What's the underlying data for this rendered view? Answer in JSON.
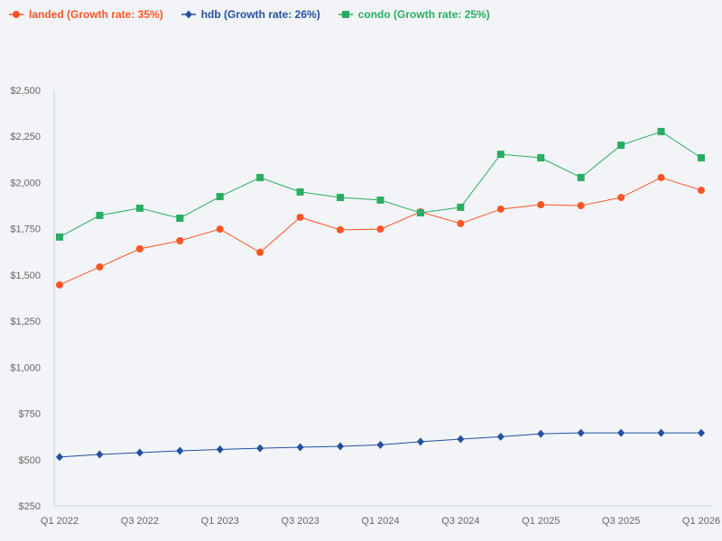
{
  "chart_data": {
    "type": "line",
    "title": "",
    "xlabel": "",
    "ylabel": "",
    "ylim": [
      250,
      2500
    ],
    "yticks": [
      "$250",
      "$500",
      "$750",
      "$1,000",
      "$1,250",
      "$1,500",
      "$1,750",
      "$2,000",
      "$2,250",
      "$2,500"
    ],
    "ytick_values": [
      250,
      500,
      750,
      1000,
      1250,
      1500,
      1750,
      2000,
      2250,
      2500
    ],
    "x": [
      "Q1 2022",
      "Q2 2022",
      "Q3 2022",
      "Q4 2022",
      "Q1 2023",
      "Q2 2023",
      "Q3 2023",
      "Q4 2023",
      "Q1 2024",
      "Q2 2024",
      "Q3 2024",
      "Q4 2024",
      "Q1 2025",
      "Q2 2025",
      "Q3 2025",
      "Q4 2025",
      "Q1 2026"
    ],
    "xticks": [
      "Q1 2022",
      "Q3 2022",
      "Q1 2023",
      "Q3 2023",
      "Q1 2024",
      "Q3 2024",
      "Q1 2025",
      "Q3 2025",
      "Q1 2026"
    ],
    "grid": false,
    "legend_position": "top-left",
    "series": [
      {
        "name": "landed (Growth rate: 35%)",
        "color": "#fc5424",
        "marker": "circle",
        "values": [
          1446,
          1543,
          1641,
          1685,
          1748,
          1622,
          1812,
          1744,
          1748,
          1841,
          1778,
          1856,
          1880,
          1875,
          1919,
          2027,
          1958
        ]
      },
      {
        "name": "hdb (Growth rate: 26%)",
        "color": "#2350a0",
        "marker": "diamond",
        "values": [
          514,
          528,
          538,
          548,
          555,
          562,
          567,
          572,
          580,
          597,
          611,
          624,
          640,
          645,
          645,
          645,
          645
        ]
      },
      {
        "name": "condo (Growth rate: 25%)",
        "color": "#27ae60",
        "marker": "square",
        "values": [
          1705,
          1822,
          1861,
          1807,
          1924,
          2027,
          1949,
          1919,
          1905,
          1836,
          1866,
          2153,
          2134,
          2027,
          2202,
          2276,
          2134
        ]
      }
    ]
  }
}
